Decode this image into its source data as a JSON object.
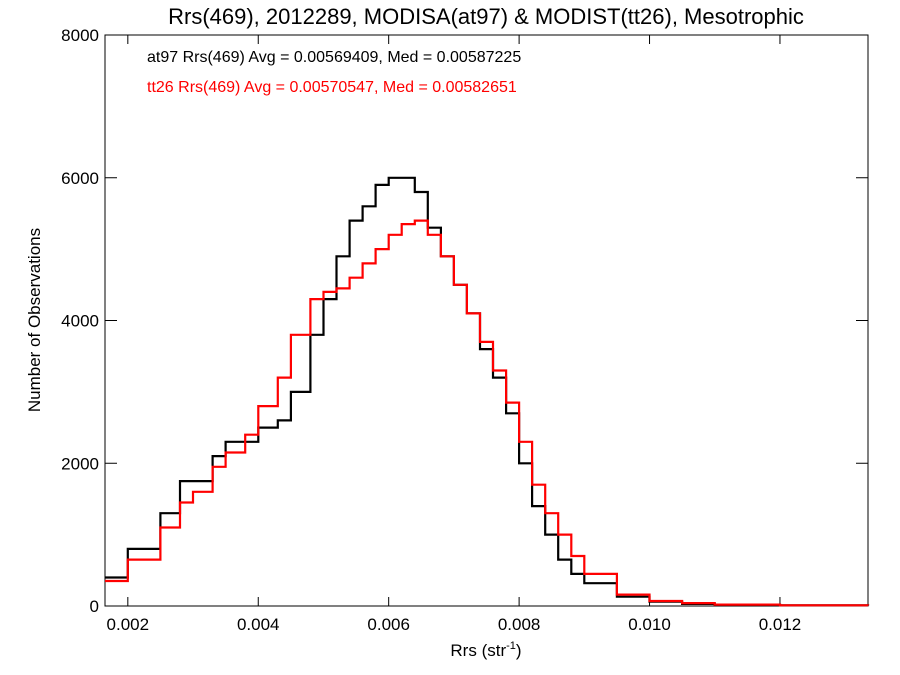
{
  "chart_data": {
    "type": "line",
    "title": "Rrs(469), 2012289, MODISA(at97) & MODIST(tt26), Mesotrophic",
    "xlabel_base": "Rrs (str",
    "xlabel_sup": "-1",
    "xlabel_close": ")",
    "ylabel": "Number of Observations",
    "xlim": [
      0.00165,
      0.01335
    ],
    "ylim": [
      0,
      8000
    ],
    "xticks": [
      0.002,
      0.004,
      0.006,
      0.008,
      0.01,
      0.012
    ],
    "xtick_labels": [
      "0.002",
      "0.004",
      "0.006",
      "0.008",
      "0.010",
      "0.012"
    ],
    "yticks": [
      0,
      2000,
      4000,
      6000,
      8000
    ],
    "ytick_labels": [
      "0",
      "2000",
      "4000",
      "6000",
      "8000"
    ],
    "legend_placement": "top-left",
    "series": [
      {
        "name": "at97 Rrs(469) Avg = 0.00569409, Med = 0.00587225",
        "color": "#000000",
        "x": [
          0.00165,
          0.002,
          0.0025,
          0.0028,
          0.003,
          0.0033,
          0.0035,
          0.0038,
          0.004,
          0.0043,
          0.0045,
          0.0048,
          0.005,
          0.0052,
          0.0054,
          0.0056,
          0.0058,
          0.006,
          0.0062,
          0.0064,
          0.0066,
          0.0068,
          0.007,
          0.0072,
          0.0074,
          0.0076,
          0.0078,
          0.008,
          0.0082,
          0.0084,
          0.0086,
          0.0088,
          0.009,
          0.0095,
          0.01,
          0.0105,
          0.011,
          0.012,
          0.01335
        ],
        "y": [
          400,
          800,
          1300,
          1750,
          1750,
          2100,
          2300,
          2300,
          2500,
          2600,
          3000,
          3800,
          4300,
          4900,
          5400,
          5600,
          5900,
          6000,
          6000,
          5800,
          5300,
          4900,
          4500,
          4100,
          3600,
          3200,
          2700,
          2000,
          1400,
          1000,
          650,
          450,
          320,
          130,
          60,
          30,
          15,
          8,
          5
        ]
      },
      {
        "name": "tt26 Rrs(469) Avg = 0.00570547, Med = 0.00582651",
        "color": "#ff0000",
        "x": [
          0.00165,
          0.002,
          0.0025,
          0.0028,
          0.003,
          0.0033,
          0.0035,
          0.0038,
          0.004,
          0.0043,
          0.0045,
          0.0048,
          0.005,
          0.0052,
          0.0054,
          0.0056,
          0.0058,
          0.006,
          0.0062,
          0.0064,
          0.0066,
          0.0068,
          0.007,
          0.0072,
          0.0074,
          0.0076,
          0.0078,
          0.008,
          0.0082,
          0.0084,
          0.0086,
          0.0088,
          0.009,
          0.0095,
          0.01,
          0.0105,
          0.011,
          0.012,
          0.01335
        ],
        "y": [
          350,
          650,
          1100,
          1450,
          1600,
          1950,
          2150,
          2400,
          2800,
          3200,
          3800,
          4300,
          4400,
          4450,
          4600,
          4800,
          5000,
          5200,
          5350,
          5400,
          5200,
          4900,
          4500,
          4100,
          3700,
          3300,
          2850,
          2300,
          1700,
          1300,
          1000,
          700,
          450,
          160,
          70,
          40,
          20,
          10,
          8
        ]
      }
    ]
  }
}
